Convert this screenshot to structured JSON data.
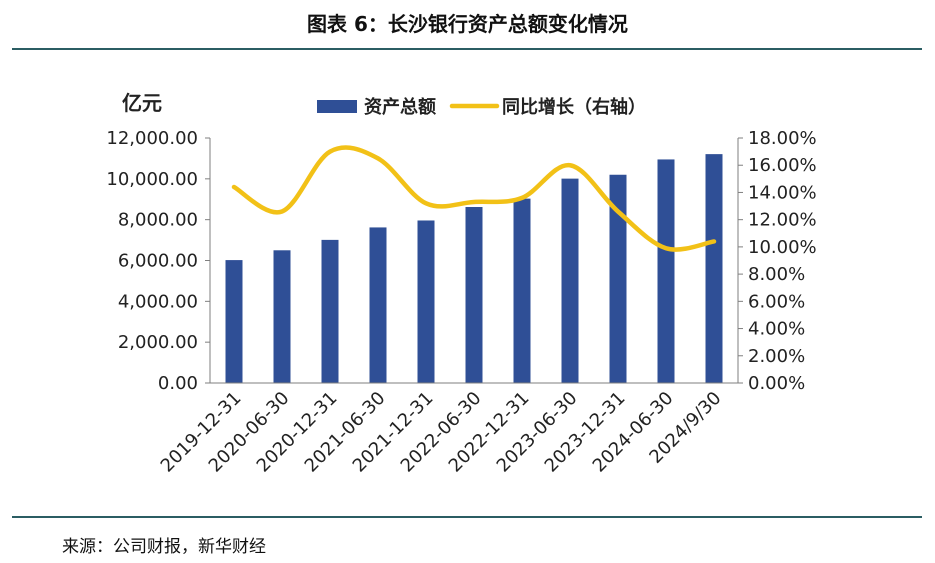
{
  "title": "图表 6：长沙银行资产总额变化情况",
  "source": "来源：公司财报，新华财经",
  "colors": {
    "bar": "#2f4f96",
    "line": "#f2c117",
    "rule": "#2b5d63",
    "axis": "#7f7f7f"
  },
  "chart_data": {
    "type": "bar+line",
    "unit_label": "亿元",
    "categories": [
      "2019-12-31",
      "2020-06-30",
      "2020-12-31",
      "2021-06-30",
      "2021-12-31",
      "2022-06-30",
      "2022-12-31",
      "2023-06-30",
      "2023-12-31",
      "2024-06-30",
      "2024/9/30"
    ],
    "series": [
      {
        "name": "资产总额",
        "type": "bar",
        "axis": "left",
        "values": [
          6020,
          6500,
          7010,
          7620,
          7960,
          8620,
          9030,
          10010,
          10200,
          10950,
          11210
        ]
      },
      {
        "name": "同比增长（右轴）",
        "type": "line",
        "axis": "right",
        "values": [
          14.4,
          12.6,
          17.0,
          16.5,
          13.2,
          13.3,
          13.6,
          16.0,
          12.6,
          9.9,
          10.4
        ]
      }
    ],
    "left_axis": {
      "min": 0,
      "max": 12000,
      "step": 2000,
      "tick_labels": [
        "0.00",
        "2,000.00",
        "4,000.00",
        "6,000.00",
        "8,000.00",
        "10,000.00",
        "12,000.00"
      ]
    },
    "right_axis": {
      "min": 0,
      "max": 18,
      "step": 2,
      "tick_labels": [
        "0.00%",
        "2.00%",
        "4.00%",
        "6.00%",
        "8.00%",
        "10.00%",
        "12.00%",
        "14.00%",
        "16.00%",
        "18.00%"
      ]
    },
    "legend": {
      "position": "top-center",
      "items": [
        "资产总额",
        "同比增长（右轴）"
      ]
    },
    "grid": false
  }
}
